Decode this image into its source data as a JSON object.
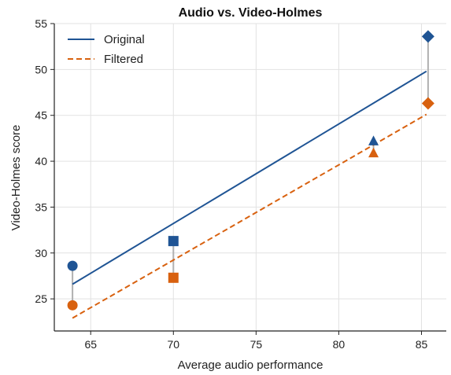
{
  "chart_data": {
    "type": "scatter",
    "title": "Audio vs. Video-Holmes",
    "xlabel": "Average audio performance",
    "ylabel": "Video-Holmes score",
    "xlim": [
      62.8,
      86.5
    ],
    "ylim": [
      21.5,
      55
    ],
    "xticks": [
      65,
      70,
      75,
      80,
      85
    ],
    "yticks": [
      25,
      30,
      35,
      40,
      45,
      50,
      55
    ],
    "grid": true,
    "legend_position": "top-left",
    "series": [
      {
        "name": "Original",
        "color": "#1f5494",
        "line_style": "solid",
        "trendline": {
          "x": [
            63.9,
            85.3
          ],
          "y": [
            26.6,
            49.8
          ]
        },
        "points": [
          {
            "x": 63.9,
            "y": 28.6,
            "marker": "circle"
          },
          {
            "x": 70.0,
            "y": 31.3,
            "marker": "square"
          },
          {
            "x": 82.1,
            "y": 42.2,
            "marker": "triangle"
          },
          {
            "x": 85.4,
            "y": 53.6,
            "marker": "diamond"
          }
        ]
      },
      {
        "name": "Filtered",
        "color": "#d8610f",
        "line_style": "dashed",
        "trendline": {
          "x": [
            63.9,
            85.3
          ],
          "y": [
            22.9,
            45.1
          ]
        },
        "points": [
          {
            "x": 63.9,
            "y": 24.3,
            "marker": "circle"
          },
          {
            "x": 70.0,
            "y": 27.3,
            "marker": "square"
          },
          {
            "x": 82.1,
            "y": 40.9,
            "marker": "triangle"
          },
          {
            "x": 85.4,
            "y": 46.3,
            "marker": "diamond"
          }
        ]
      }
    ],
    "connector_color": "#b0b0b0"
  }
}
